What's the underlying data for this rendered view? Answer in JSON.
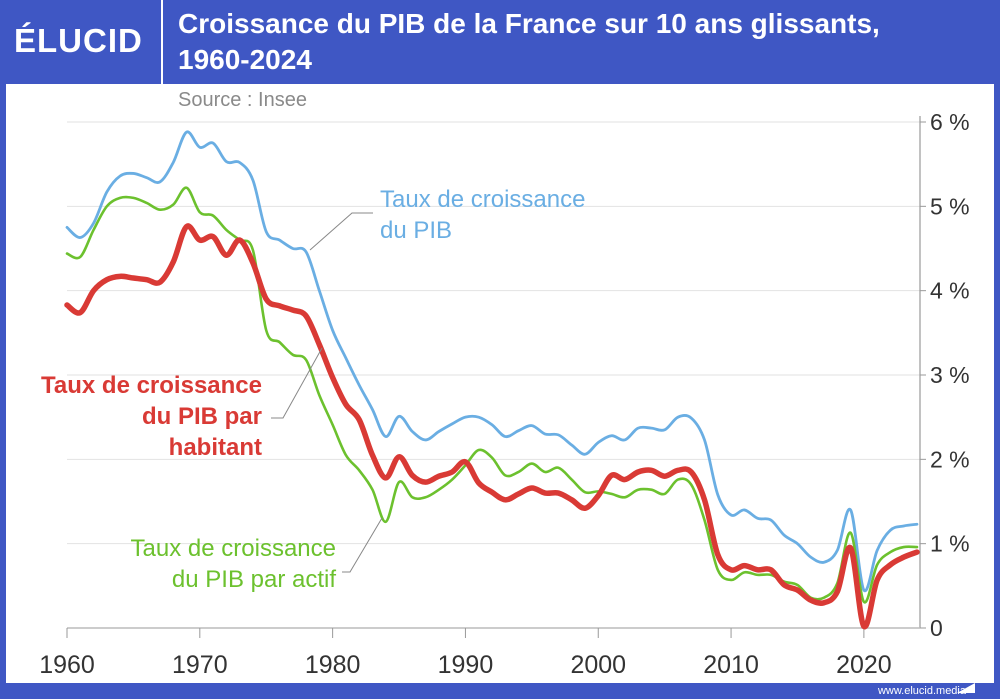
{
  "header": {
    "logo": "ÉLUCID",
    "title_line1": "Croissance du PIB de la France sur 10 ans glissants,",
    "title_line2": "1960-2024",
    "source": "Source : Insee"
  },
  "footer": {
    "url": "www.elucid.media"
  },
  "chart_data": {
    "type": "line",
    "title": "Croissance du PIB de la France sur 10 ans glissants, 1960-2024",
    "xlim": [
      1960,
      2024
    ],
    "ylim": [
      0,
      6
    ],
    "x_ticks": [
      "1960",
      "1970",
      "1980",
      "1990",
      "2000",
      "2010",
      "2020"
    ],
    "y_ticks": [
      "0",
      "1 %",
      "2 %",
      "3 %",
      "4 %",
      "5 %",
      "6 %"
    ],
    "y_axis_position": "right",
    "grid": true,
    "x": [
      1960,
      1961,
      1962,
      1963,
      1964,
      1965,
      1966,
      1967,
      1968,
      1969,
      1970,
      1971,
      1972,
      1973,
      1974,
      1975,
      1976,
      1977,
      1978,
      1979,
      1980,
      1981,
      1982,
      1983,
      1984,
      1985,
      1986,
      1987,
      1988,
      1989,
      1990,
      1991,
      1992,
      1993,
      1994,
      1995,
      1996,
      1997,
      1998,
      1999,
      2000,
      2001,
      2002,
      2003,
      2004,
      2005,
      2006,
      2007,
      2008,
      2009,
      2010,
      2011,
      2012,
      2013,
      2014,
      2015,
      2016,
      2017,
      2018,
      2019,
      2020,
      2021,
      2022,
      2023,
      2024
    ],
    "series": [
      {
        "name": "Taux de croissance du PIB",
        "label_lines": [
          "Taux de croissance",
          "du PIB"
        ],
        "color": "#6aaee3",
        "values": [
          4.75,
          4.63,
          4.8,
          5.17,
          5.36,
          5.39,
          5.34,
          5.29,
          5.52,
          5.88,
          5.7,
          5.75,
          5.53,
          5.52,
          5.31,
          4.7,
          4.6,
          4.5,
          4.46,
          4.0,
          3.53,
          3.2,
          2.88,
          2.59,
          2.27,
          2.51,
          2.33,
          2.23,
          2.33,
          2.42,
          2.5,
          2.5,
          2.41,
          2.27,
          2.34,
          2.4,
          2.3,
          2.29,
          2.17,
          2.06,
          2.2,
          2.28,
          2.23,
          2.37,
          2.37,
          2.35,
          2.5,
          2.49,
          2.23,
          1.58,
          1.34,
          1.4,
          1.3,
          1.28,
          1.1,
          1.0,
          0.84,
          0.78,
          0.92,
          1.4,
          0.45,
          0.92,
          1.16,
          1.21,
          1.23
        ]
      },
      {
        "name": "Taux de croissance du PIB par habitant",
        "label_lines": [
          "Taux de croissance",
          "du PIB par",
          "habitant"
        ],
        "color": "#d93a35",
        "values": [
          3.83,
          3.74,
          4.0,
          4.13,
          4.17,
          4.15,
          4.13,
          4.1,
          4.34,
          4.76,
          4.6,
          4.64,
          4.42,
          4.6,
          4.33,
          3.9,
          3.82,
          3.77,
          3.7,
          3.36,
          2.97,
          2.65,
          2.47,
          2.05,
          1.78,
          2.03,
          1.81,
          1.73,
          1.8,
          1.85,
          1.97,
          1.72,
          1.61,
          1.52,
          1.59,
          1.66,
          1.6,
          1.6,
          1.52,
          1.42,
          1.57,
          1.81,
          1.76,
          1.85,
          1.87,
          1.8,
          1.87,
          1.85,
          1.52,
          0.87,
          0.69,
          0.74,
          0.69,
          0.69,
          0.51,
          0.45,
          0.33,
          0.3,
          0.43,
          0.95,
          0.02,
          0.57,
          0.75,
          0.84,
          0.9
        ]
      },
      {
        "name": "Taux de croissance du PIB par actif",
        "label_lines": [
          "Taux de croissance",
          "du PIB par actif"
        ],
        "color": "#6cc12e",
        "values": [
          4.44,
          4.4,
          4.72,
          5.0,
          5.1,
          5.1,
          5.04,
          4.96,
          5.02,
          5.22,
          4.93,
          4.89,
          4.72,
          4.6,
          4.48,
          3.53,
          3.39,
          3.24,
          3.18,
          2.76,
          2.41,
          2.05,
          1.87,
          1.64,
          1.26,
          1.73,
          1.55,
          1.55,
          1.64,
          1.76,
          1.93,
          2.11,
          2.02,
          1.81,
          1.85,
          1.95,
          1.85,
          1.9,
          1.76,
          1.61,
          1.62,
          1.59,
          1.55,
          1.64,
          1.64,
          1.59,
          1.76,
          1.7,
          1.28,
          0.69,
          0.57,
          0.66,
          0.63,
          0.63,
          0.55,
          0.51,
          0.36,
          0.36,
          0.53,
          1.13,
          0.31,
          0.75,
          0.9,
          0.96,
          0.96
        ]
      }
    ]
  }
}
